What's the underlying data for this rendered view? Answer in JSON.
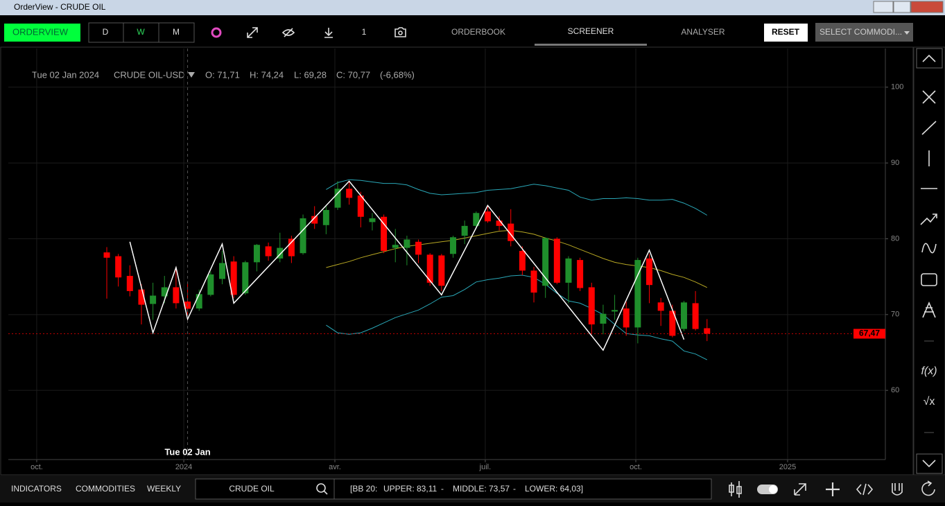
{
  "window": {
    "title": "OrderView - CRUDE OIL"
  },
  "toolbar": {
    "app": "ORDERVIEW",
    "periods": [
      "D",
      "W",
      "M"
    ],
    "count": "1",
    "tabs": [
      "ORDERBOOK",
      "SCREENER",
      "ANALYSER"
    ],
    "reset": "RESET",
    "select": "SELECT COMMODI..."
  },
  "legend": {
    "date": "Tue 02 Jan 2024",
    "symbol": "CRUDE OIL-USD",
    "open": "O: 71,71",
    "high": "H: 74,24",
    "low": "L: 69,28",
    "close": "C: 70,77",
    "change": "(-6,68%)"
  },
  "side_tools": [
    "f(x)",
    "√x"
  ],
  "bottom": {
    "tabs": [
      "INDICATORS",
      "COMMODITIES",
      "WEEKLY"
    ],
    "search": "CRUDE OIL",
    "bb": "[BB 20:",
    "upper": "UPPER:  83,11",
    "sep": "-",
    "middle": "MIDDLE:  73,57",
    "lower": "LOWER:  64,03]"
  },
  "chart_data": {
    "type": "candlestick",
    "categories": [
      null,
      null,
      null,
      null,
      null,
      null,
      null,
      null,
      null,
      null,
      null,
      null,
      null,
      null,
      null,
      null,
      null,
      null,
      null,
      null,
      null,
      null,
      null,
      null,
      null,
      null,
      null,
      null,
      null,
      null,
      null,
      null,
      null,
      null,
      null,
      null,
      null,
      null,
      null,
      null,
      null,
      null,
      null,
      null,
      null,
      null,
      null,
      null,
      null,
      null,
      null,
      null,
      null
    ],
    "open": [
      78.2,
      77.7,
      75.1,
      73.3,
      71.4,
      72.4,
      73.6,
      71.71,
      70.8,
      72.6,
      74.7,
      77.0,
      72.8,
      76.9,
      79.0,
      77.4,
      80.0,
      78.1,
      83.0,
      81.8,
      84.1,
      86.6,
      85.7,
      82.2,
      82.9,
      78.8,
      78.8,
      79.6,
      77.9,
      77.8,
      78.0,
      80.4,
      81.7,
      83.6,
      82.4,
      82.0,
      78.4,
      75.8,
      73.8,
      80.0,
      74.2,
      77.2,
      73.6,
      68.8,
      70.4,
      70.8,
      68.3,
      77.4,
      71.6,
      70.5,
      68.1,
      71.5,
      68.2
    ],
    "high": [
      78.9,
      78.0,
      76.5,
      74.0,
      74.2,
      75.1,
      76.3,
      74.24,
      73.3,
      75.7,
      78.4,
      77.7,
      77.1,
      79.3,
      79.5,
      80.8,
      80.4,
      83.2,
      84.3,
      84.3,
      87.6,
      87.6,
      86.2,
      83.4,
      83.2,
      81.3,
      80.4,
      79.9,
      78.1,
      78.0,
      80.4,
      82.4,
      83.6,
      84.3,
      83.0,
      83.9,
      79.0,
      76.3,
      80.2,
      80.2,
      77.7,
      77.5,
      74.2,
      71.3,
      72.6,
      71.7,
      77.5,
      78.0,
      72.2,
      71.3,
      71.8,
      73.1,
      69.4
    ],
    "low": [
      72.1,
      73.7,
      72.4,
      68.7,
      69.3,
      71.5,
      70.8,
      69.28,
      70.5,
      72.4,
      74.0,
      72.2,
      72.6,
      75.7,
      77.1,
      76.9,
      76.8,
      77.9,
      81.3,
      80.6,
      83.8,
      84.5,
      81.5,
      81.1,
      78.1,
      76.9,
      76.5,
      76.8,
      73.8,
      73.1,
      77.5,
      79.3,
      81.3,
      82.1,
      81.1,
      79.0,
      75.2,
      71.6,
      72.2,
      74.0,
      71.5,
      73.1,
      67.4,
      67.4,
      69.3,
      67.2,
      66.2,
      71.5,
      68.5,
      67.0,
      67.8,
      67.9,
      66.5
    ],
    "close": [
      77.5,
      74.9,
      73.1,
      71.3,
      72.5,
      73.6,
      71.5,
      70.77,
      72.7,
      75.3,
      76.8,
      72.6,
      76.9,
      79.2,
      77.7,
      78.8,
      77.7,
      82.7,
      82.0,
      83.8,
      86.6,
      85.4,
      82.9,
      82.7,
      78.4,
      79.2,
      79.9,
      77.9,
      74.2,
      73.8,
      80.2,
      81.7,
      83.4,
      82.3,
      81.7,
      79.7,
      75.8,
      72.9,
      80.1,
      74.2,
      77.4,
      73.5,
      68.7,
      70.1,
      70.6,
      68.3,
      77.2,
      73.9,
      70.5,
      67.2,
      71.6,
      68.1,
      67.47
    ],
    "up_color": "#1f8f2c",
    "down_color": "#ff0000",
    "series": [
      {
        "name": "UPPER",
        "color": "#2aa8b8",
        "values": [
          null,
          null,
          null,
          null,
          null,
          null,
          null,
          null,
          null,
          null,
          null,
          null,
          null,
          null,
          null,
          null,
          null,
          null,
          null,
          86.5,
          87.4,
          87.8,
          87.7,
          87.5,
          87.3,
          87.3,
          87.1,
          86.5,
          86.0,
          85.8,
          85.9,
          86.0,
          86.1,
          86.4,
          86.5,
          86.6,
          86.9,
          87.2,
          87.0,
          86.7,
          86.4,
          85.5,
          85.1,
          85.3,
          85.3,
          85.4,
          85.3,
          85.1,
          85.1,
          85.2,
          84.7,
          84.0,
          83.11
        ]
      },
      {
        "name": "MIDDLE",
        "color": "#b8a823",
        "values": [
          null,
          null,
          null,
          null,
          null,
          null,
          null,
          null,
          null,
          null,
          null,
          null,
          null,
          null,
          null,
          null,
          null,
          null,
          null,
          76.2,
          76.6,
          77.0,
          77.5,
          77.9,
          78.3,
          78.7,
          79.0,
          79.2,
          79.4,
          79.6,
          79.8,
          80.1,
          80.4,
          80.7,
          81.0,
          81.1,
          80.9,
          80.6,
          80.1,
          79.7,
          79.2,
          78.6,
          78.0,
          77.4,
          76.9,
          76.6,
          76.4,
          76.2,
          75.8,
          75.3,
          74.9,
          74.3,
          73.57
        ]
      },
      {
        "name": "LOWER",
        "color": "#2aa8b8",
        "values": [
          null,
          null,
          null,
          null,
          null,
          null,
          null,
          null,
          null,
          null,
          null,
          null,
          null,
          null,
          null,
          null,
          null,
          null,
          null,
          68.6,
          67.6,
          67.4,
          67.6,
          68.2,
          68.9,
          69.6,
          70.1,
          70.6,
          71.4,
          72.3,
          72.5,
          73.3,
          74.3,
          74.6,
          74.8,
          75.1,
          75.2,
          74.9,
          74.0,
          72.8,
          71.8,
          71.5,
          70.8,
          70.0,
          68.7,
          67.5,
          67.3,
          67.2,
          66.8,
          66.5,
          65.2,
          64.8,
          64.03
        ]
      }
    ],
    "zigzag": {
      "color": "#ffffff",
      "x": [
        2,
        4,
        6,
        7,
        10,
        11,
        21,
        29,
        33,
        43,
        47,
        50
      ],
      "values": [
        79.6,
        67.6,
        76.2,
        69.4,
        79.3,
        71.5,
        87.6,
        72.6,
        84.4,
        65.3,
        78.5,
        66.7
      ]
    },
    "last_price": {
      "value": 67.47,
      "label": "67,47",
      "color": "#ff0000"
    },
    "crosshair": {
      "x": 7,
      "label": "Tue 02 Jan"
    },
    "xlim": [
      -8.53,
      67.45
    ],
    "xticks": [
      {
        "value": -6.07,
        "label": "oct."
      },
      {
        "value": 6.67,
        "label": "2024"
      },
      {
        "value": 19.76,
        "label": "avr."
      },
      {
        "value": 32.79,
        "label": "juil."
      },
      {
        "value": 45.83,
        "label": "oct."
      },
      {
        "value": 58.98,
        "label": "2025"
      }
    ],
    "ylim": [
      50.87,
      105.1
    ],
    "yticks": [
      60,
      70,
      80,
      90,
      100
    ],
    "grid": true
  }
}
